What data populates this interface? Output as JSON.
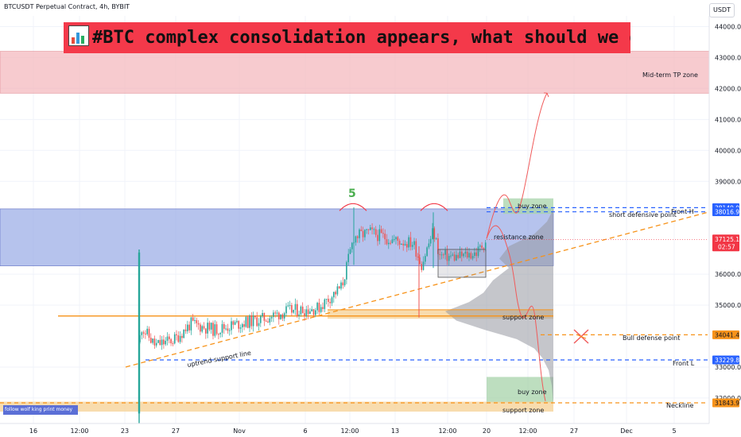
{
  "header": {
    "symbol_line": "BTCUSDT Perpetual Contract, 4h, BYBIT",
    "currency_button": "USDT",
    "banner_title": "#BTC complex consolidation appears, what should we do",
    "banner_question": "?",
    "author_tag": "follow wolf king print money"
  },
  "chart_data": {
    "type": "candlestick",
    "symbol": "BTCUSDT Perpetual Contract",
    "interval": "4h",
    "exchange": "BYBIT",
    "y_axis": {
      "ticks": [
        "44000.0",
        "43000.0",
        "42000.0",
        "41000.0",
        "40000.0",
        "39000.0",
        "36000.0",
        "35000.0",
        "33000.0",
        "32000.0"
      ],
      "range": [
        31000,
        44400
      ]
    },
    "x_axis": {
      "ticks": [
        "16",
        "12:00",
        "23",
        "27",
        "Nov",
        "6",
        "12:00",
        "13",
        "12:00",
        "20",
        "12:00",
        "27",
        "Dec",
        "5"
      ]
    },
    "last_price": {
      "value": "37125.1",
      "countdown": "02:57",
      "color": "#f23645"
    },
    "price_tags": [
      {
        "value": "38149.0",
        "color": "#2962ff",
        "price": 38149.0
      },
      {
        "value": "38016.9",
        "color": "#2962ff",
        "price": 38016.9
      },
      {
        "value": "34041.4",
        "color": "#f7931a",
        "price": 34041.4
      },
      {
        "value": "33229.8",
        "color": "#2962ff",
        "price": 33229.8
      },
      {
        "value": "31843.9",
        "color": "#f7931a",
        "price": 31843.9
      }
    ],
    "zones": [
      {
        "label": "Mid-term TP zone",
        "from": 41850,
        "to": 43200,
        "color": "#f8c8cc"
      },
      {
        "label": "resistance zone",
        "from": 36270,
        "to": 38110,
        "color": "#8fa3e3"
      },
      {
        "label": "buy zone",
        "from": 37950,
        "to": 38450,
        "color": "#a7d3a9"
      },
      {
        "label": "support zone",
        "from": 34560,
        "to": 34850,
        "color": "#f6d39a"
      },
      {
        "label": "buy zone",
        "from": 31850,
        "to": 32680,
        "color": "#a7d3a9"
      },
      {
        "label": "support zone",
        "from": 31560,
        "to": 31880,
        "color": "#f6d39a"
      }
    ],
    "levels": [
      {
        "label": "Front H",
        "price": 38149.0,
        "color": "#2962ff"
      },
      {
        "label": "short defensive point",
        "price": 38016.9,
        "color": "#2962ff"
      },
      {
        "label": "Bull defense point",
        "price": 34041.4,
        "color": "#f7931a"
      },
      {
        "label": "Front L",
        "price": 33229.8,
        "color": "#2962ff"
      },
      {
        "label": "Neckline",
        "price": 31843.9,
        "color": "#f7931a"
      }
    ],
    "annotations": [
      "5",
      "uptrend support line"
    ],
    "colors": {
      "up": "#26a69a",
      "down": "#ef5350",
      "projection": "#f05a5a",
      "trendline": "#f7931a"
    },
    "grid": true
  }
}
